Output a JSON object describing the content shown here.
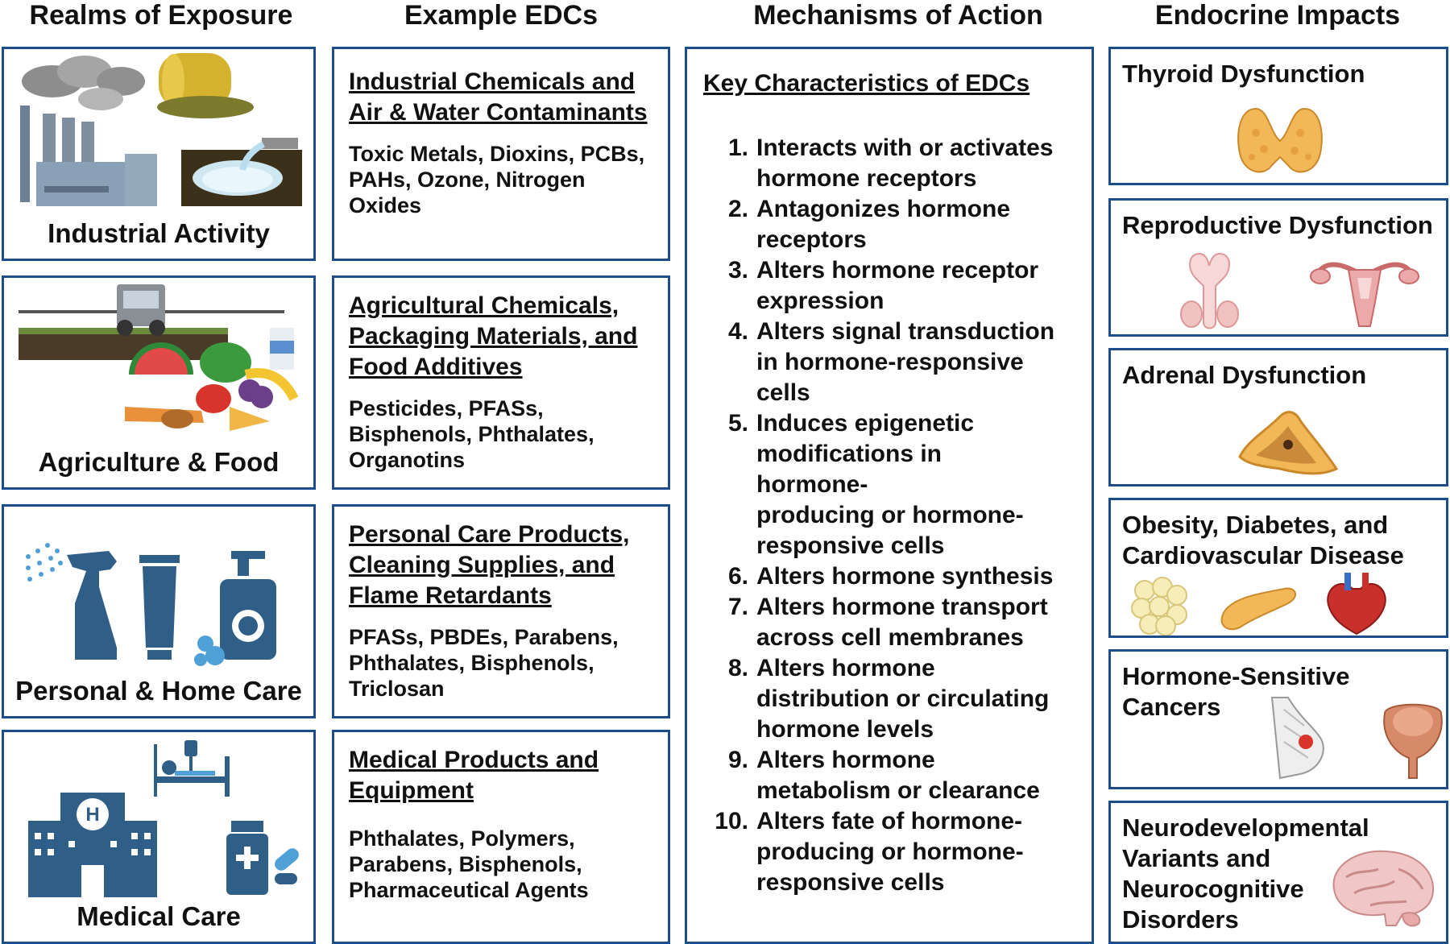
{
  "columns": {
    "realms": "Realms of Exposure",
    "examples": "Example EDCs",
    "mechanisms": "Mechanisms of Action",
    "impacts": "Endocrine Impacts"
  },
  "realms": [
    {
      "label": "Industrial Activity",
      "icon": "factory-icon"
    },
    {
      "label": "Agriculture & Food",
      "icon": "tractor-food-icon"
    },
    {
      "label": "Personal & Home Care",
      "icon": "spray-bottle-icon"
    },
    {
      "label": "Medical Care",
      "icon": "hospital-icon"
    }
  ],
  "examples": [
    {
      "title_lines": [
        "Industrial Chemicals and",
        "Air & Water Contaminants"
      ],
      "text_lines": [
        "Toxic Metals, Dioxins, PCBs,",
        "PAHs, Ozone, Nitrogen",
        "Oxides"
      ]
    },
    {
      "title_lines": [
        "Agricultural Chemicals,",
        "Packaging Materials, and",
        "Food Additives"
      ],
      "text_lines": [
        "Pesticides, PFASs,",
        "Bisphenols, Phthalates,",
        "Organotins"
      ]
    },
    {
      "title_lines": [
        "Personal Care Products,",
        "Cleaning Supplies, and",
        "Flame Retardants"
      ],
      "text_lines": [
        "PFASs, PBDEs, Parabens,",
        "Phthalates, Bisphenols,",
        "Triclosan"
      ]
    },
    {
      "title_lines": [
        "Medical Products and",
        "Equipment"
      ],
      "text_lines": [
        "Phthalates, Polymers,",
        "Parabens, Bisphenols,",
        "Pharmaceutical Agents"
      ]
    }
  ],
  "mechanisms": {
    "title": "Key Characteristics of EDCs",
    "items": [
      {
        "num": "1.",
        "lines": [
          "Interacts with or activates",
          "hormone receptors"
        ]
      },
      {
        "num": "2.",
        "lines": [
          "Antagonizes hormone",
          "receptors"
        ]
      },
      {
        "num": "3.",
        "lines": [
          "Alters hormone receptor",
          "expression"
        ]
      },
      {
        "num": "4.",
        "lines": [
          "Alters signal transduction",
          "in hormone-responsive",
          "cells"
        ]
      },
      {
        "num": "5.",
        "lines": [
          "Induces epigenetic",
          "modifications in hormone-",
          "producing or hormone-",
          "responsive cells"
        ]
      },
      {
        "num": "6.",
        "lines": [
          "Alters hormone synthesis"
        ]
      },
      {
        "num": "7.",
        "lines": [
          "Alters hormone transport",
          "across cell membranes"
        ]
      },
      {
        "num": "8.",
        "lines": [
          "Alters hormone",
          "distribution or circulating",
          "hormone levels"
        ]
      },
      {
        "num": "9.",
        "lines": [
          "Alters hormone",
          "metabolism or clearance"
        ]
      },
      {
        "num": "10.",
        "lines": [
          "Alters fate of hormone-",
          "producing or hormone-",
          "responsive cells"
        ]
      }
    ]
  },
  "impacts": [
    {
      "title_lines": [
        "Thyroid Dysfunction"
      ],
      "icon": "thyroid-icon"
    },
    {
      "title_lines": [
        "Reproductive Dysfunction"
      ],
      "icon": "reproductive-organs-icon"
    },
    {
      "title_lines": [
        "Adrenal Dysfunction"
      ],
      "icon": "adrenal-gland-icon"
    },
    {
      "title_lines": [
        "Obesity, Diabetes, and",
        "Cardiovascular Disease"
      ],
      "icon": "fat-pancreas-heart-icon"
    },
    {
      "title_lines": [
        "Hormone-Sensitive",
        "Cancers"
      ],
      "icon": "breast-prostate-icon"
    },
    {
      "title_lines": [
        "Neurodevelopmental",
        "Variants and",
        "Neurocognitive",
        "Disorders"
      ],
      "icon": "brain-icon"
    }
  ],
  "colors": {
    "border": "#1e4d8c",
    "icon_blue": "#2f5f86",
    "tissue_orange": "#f2b857",
    "tissue_pink": "#eba9a9"
  }
}
